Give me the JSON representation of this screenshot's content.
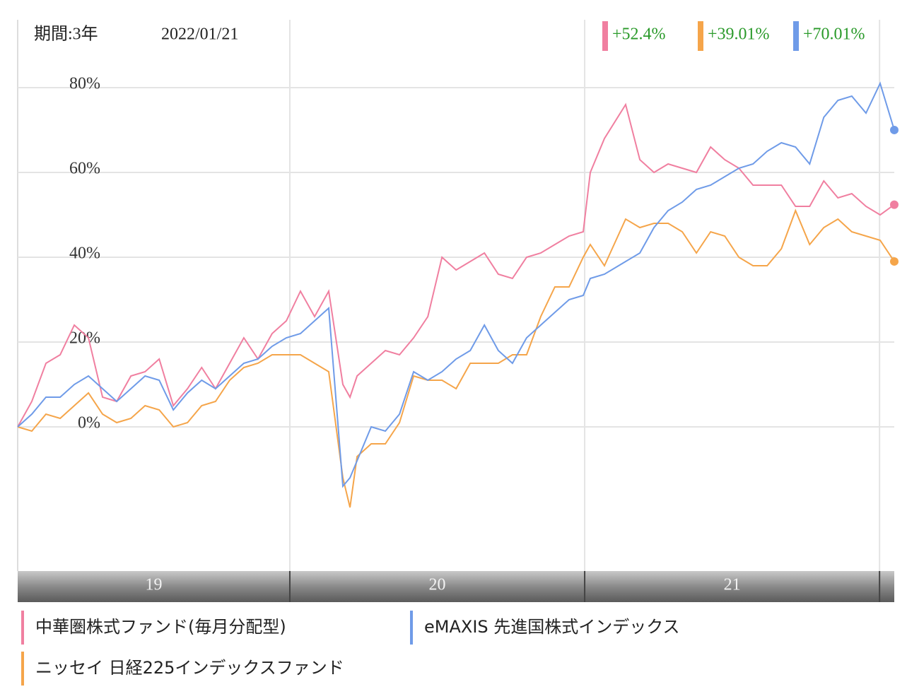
{
  "chart_data": {
    "type": "line",
    "period": "期間:3年",
    "date": "2022/01/21",
    "x": [
      19.077,
      19.125,
      19.173,
      19.221,
      19.269,
      19.317,
      19.365,
      19.413,
      19.461,
      19.509,
      19.557,
      19.605,
      19.653,
      19.701,
      19.748,
      19.796,
      19.844,
      19.892,
      19.94,
      19.988,
      20.036,
      20.084,
      20.132,
      20.18,
      20.204,
      20.228,
      20.276,
      20.324,
      20.372,
      20.42,
      20.468,
      20.516,
      20.564,
      20.612,
      20.66,
      20.707,
      20.755,
      20.803,
      20.851,
      20.899,
      20.947,
      20.995,
      21.019,
      21.067,
      21.139,
      21.187,
      21.235,
      21.283,
      21.331,
      21.379,
      21.427,
      21.475,
      21.523,
      21.571,
      21.619,
      21.667,
      21.715,
      21.763,
      21.811,
      21.859,
      21.906,
      21.954,
      22.002,
      22.05
    ],
    "xlim": [
      19.077,
      22.05
    ],
    "xgrid": [
      20,
      21,
      22
    ],
    "xbands": [
      {
        "label": "19",
        "from": 19,
        "to": 20
      },
      {
        "label": "20",
        "from": 20,
        "to": 21
      },
      {
        "label": "21",
        "from": 21,
        "to": 22
      }
    ],
    "ylim": [
      -34,
      96
    ],
    "yticks": [
      {
        "value": 0,
        "label": "0%"
      },
      {
        "value": 20,
        "label": "20%"
      },
      {
        "value": 40,
        "label": "40%"
      },
      {
        "value": 60,
        "label": "60%"
      },
      {
        "value": 80,
        "label": "80%"
      }
    ],
    "grid": true,
    "series": [
      {
        "name": "中華圏株式ファンド(毎月分配型)",
        "color": "#f07fa0",
        "change_label": "+52.4%",
        "values": [
          0,
          6,
          15,
          17,
          24,
          21,
          7,
          6,
          12,
          13,
          16,
          5,
          9,
          14,
          9,
          15,
          21,
          16,
          22,
          25,
          32,
          26,
          32,
          10,
          7,
          12,
          15,
          18,
          17,
          21,
          26,
          40,
          37,
          39,
          41,
          36,
          35,
          40,
          41,
          43,
          45,
          46,
          60,
          68,
          76,
          63,
          60,
          62,
          61,
          60,
          66,
          63,
          61,
          57,
          57,
          57,
          52,
          52,
          58,
          54,
          55,
          52,
          50,
          52.4
        ]
      },
      {
        "name": "ニッセイ 日経225インデックスファンド",
        "color": "#f5a54a",
        "change_label": "+39.01%",
        "values": [
          0,
          -1,
          3,
          2,
          5,
          8,
          3,
          1,
          2,
          5,
          4,
          0,
          1,
          5,
          6,
          11,
          14,
          15,
          17,
          17,
          17,
          15,
          13,
          -12,
          -19,
          -7,
          -4,
          -4,
          1,
          12,
          11,
          11,
          9,
          15,
          15,
          15,
          17,
          17,
          26,
          33,
          33,
          40,
          43,
          38,
          49,
          47,
          48,
          48,
          46,
          41,
          46,
          45,
          40,
          38,
          38,
          42,
          51,
          43,
          47,
          49,
          46,
          45,
          44,
          39.01
        ]
      },
      {
        "name": "eMAXIS 先進国株式インデックス",
        "color": "#6f9be8",
        "change_label": "+70.01%",
        "values": [
          0,
          3,
          7,
          7,
          10,
          12,
          9,
          6,
          9,
          12,
          11,
          4,
          8,
          11,
          9,
          12,
          15,
          16,
          19,
          21,
          22,
          25,
          28,
          -14,
          -12,
          -8,
          0,
          -1,
          3,
          13,
          11,
          13,
          16,
          18,
          24,
          18,
          15,
          21,
          24,
          27,
          30,
          31,
          35,
          36,
          39,
          41,
          47,
          51,
          53,
          56,
          57,
          59,
          61,
          62,
          65,
          67,
          66,
          62,
          73,
          77,
          78,
          74,
          81,
          70.01
        ]
      }
    ]
  }
}
